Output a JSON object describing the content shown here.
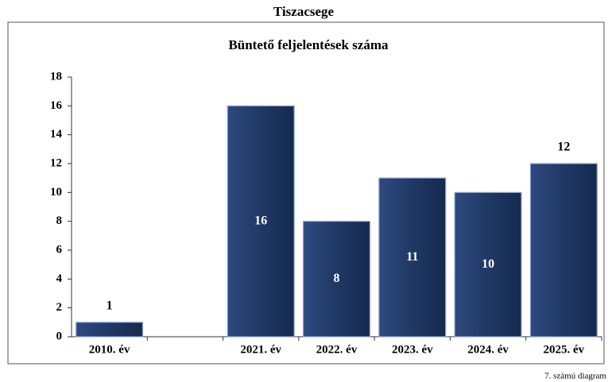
{
  "chart_data": {
    "type": "bar",
    "page_title": "Tiszacsege",
    "title": "Büntető feljelentések száma",
    "footer": "7. számú diagram",
    "categories": [
      "2010. év",
      null,
      "2021. év",
      "2022. év",
      "2023. év",
      "2024. év",
      "2025. év"
    ],
    "values": [
      1,
      null,
      16,
      8,
      11,
      10,
      12
    ],
    "value_label_positions": [
      "outside",
      null,
      "inside",
      "inside",
      "inside",
      "inside",
      "outside"
    ],
    "color": "#1f3864",
    "ylim": [
      0,
      18
    ],
    "yticks": [
      0,
      2,
      4,
      6,
      8,
      10,
      12,
      14,
      16,
      18
    ],
    "grid": false
  }
}
